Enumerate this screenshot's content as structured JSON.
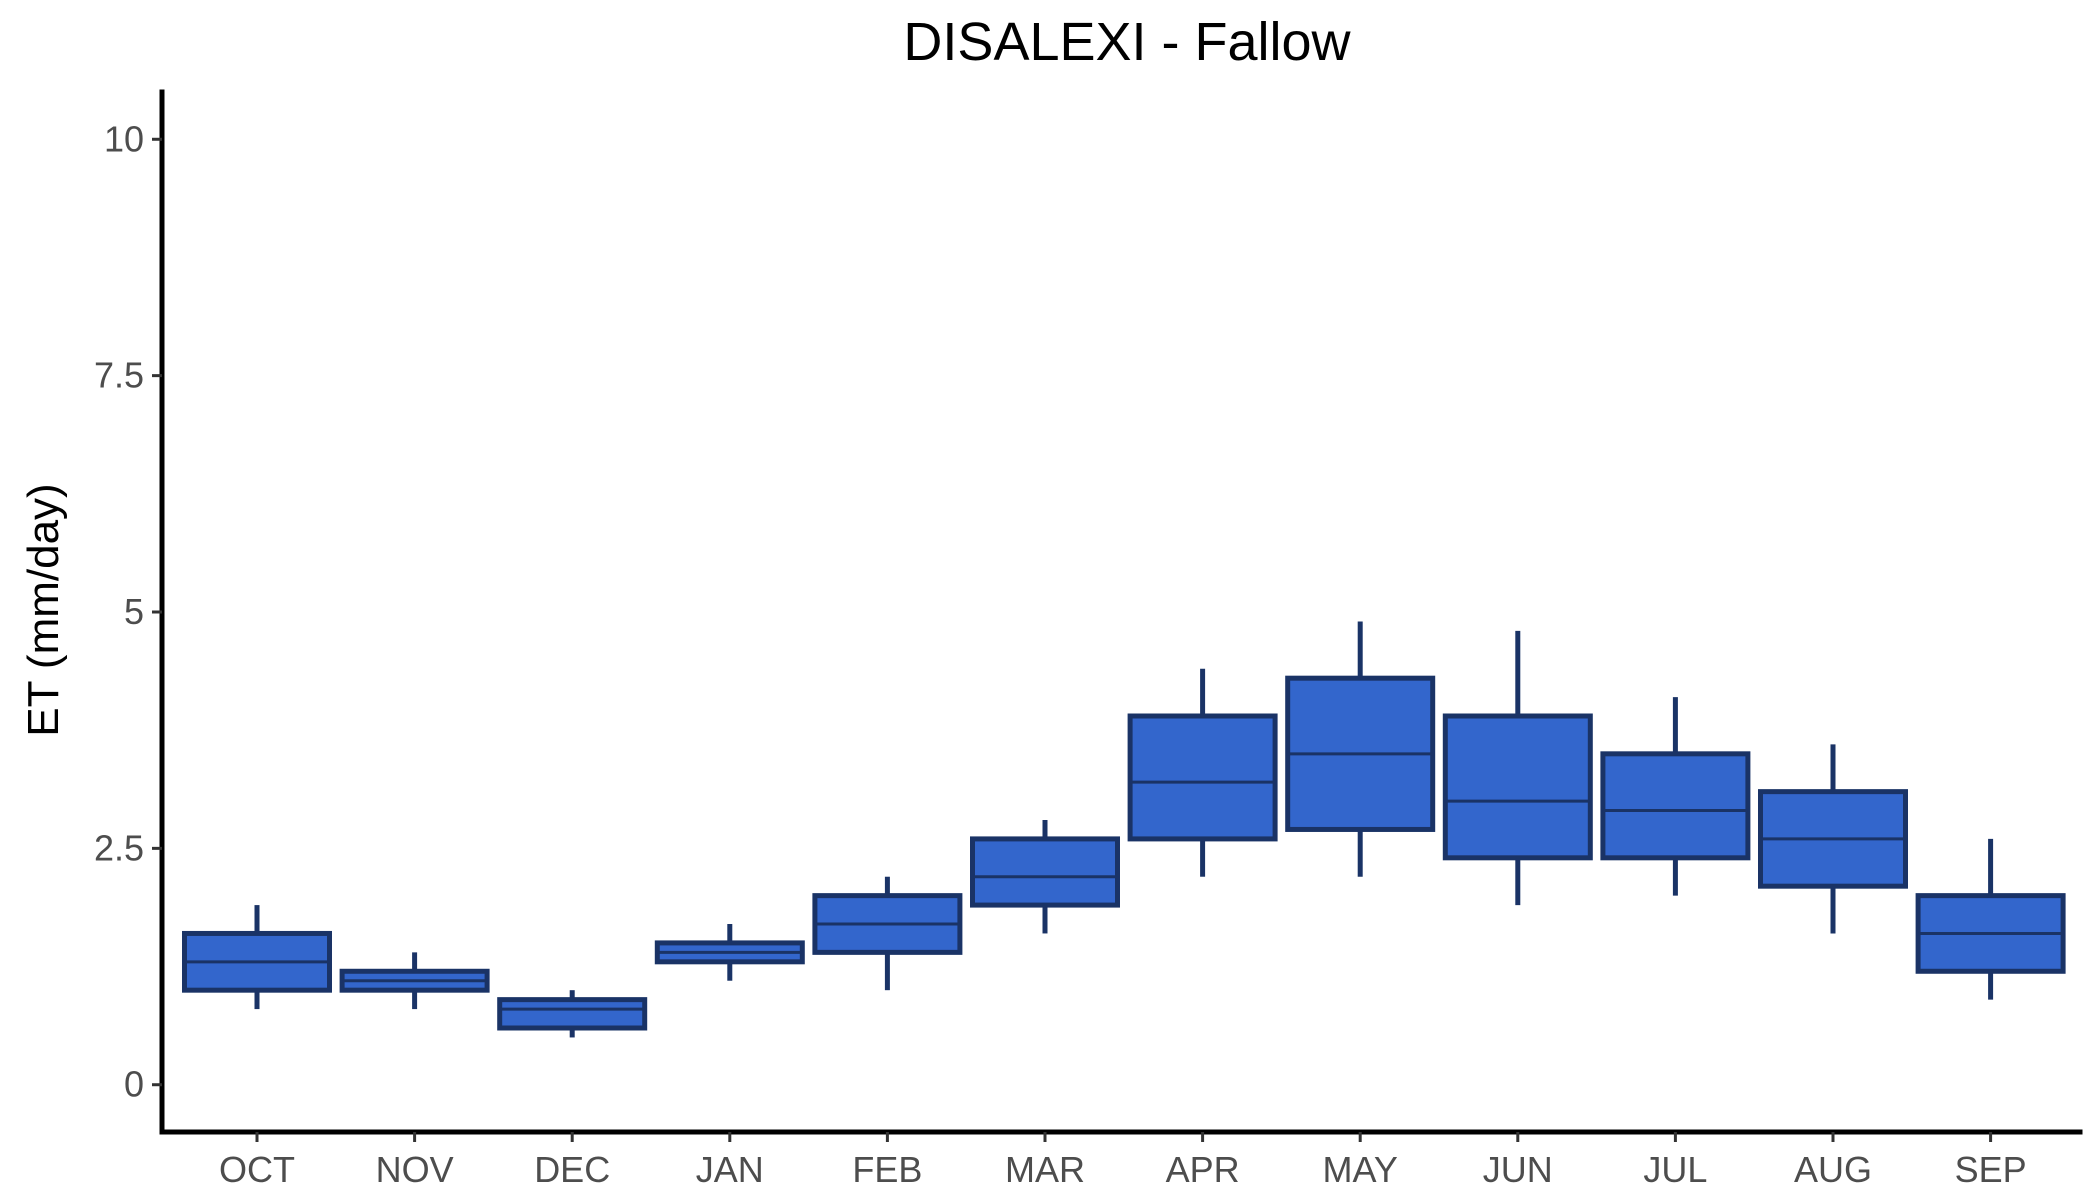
{
  "chart_data": {
    "type": "box",
    "title": "DISALEXI - Fallow",
    "xlabel": "",
    "ylabel": "ET (mm/day)",
    "ylim": [
      -0.5,
      10.5
    ],
    "yticks": [
      0,
      2.5,
      5,
      7.5,
      10
    ],
    "ytick_labels": [
      "0",
      "2.5",
      "5",
      "7.5",
      "10"
    ],
    "categories": [
      "OCT",
      "NOV",
      "DEC",
      "JAN",
      "FEB",
      "MAR",
      "APR",
      "MAY",
      "JUN",
      "JUL",
      "AUG",
      "SEP"
    ],
    "boxes": [
      {
        "min": 0.8,
        "q1": 1.0,
        "median": 1.3,
        "q3": 1.6,
        "max": 1.9
      },
      {
        "min": 0.8,
        "q1": 1.0,
        "median": 1.1,
        "q3": 1.2,
        "max": 1.4
      },
      {
        "min": 0.5,
        "q1": 0.6,
        "median": 0.8,
        "q3": 0.9,
        "max": 1.0
      },
      {
        "min": 1.1,
        "q1": 1.3,
        "median": 1.4,
        "q3": 1.5,
        "max": 1.7
      },
      {
        "min": 1.0,
        "q1": 1.4,
        "median": 1.7,
        "q3": 2.0,
        "max": 2.2
      },
      {
        "min": 1.6,
        "q1": 1.9,
        "median": 2.2,
        "q3": 2.6,
        "max": 2.8
      },
      {
        "min": 2.2,
        "q1": 2.6,
        "median": 3.2,
        "q3": 3.9,
        "max": 4.4
      },
      {
        "min": 2.2,
        "q1": 2.7,
        "median": 3.5,
        "q3": 4.3,
        "max": 4.9
      },
      {
        "min": 1.9,
        "q1": 2.4,
        "median": 3.0,
        "q3": 3.9,
        "max": 4.8
      },
      {
        "min": 2.0,
        "q1": 2.4,
        "median": 2.9,
        "q3": 3.5,
        "max": 4.1
      },
      {
        "min": 1.6,
        "q1": 2.1,
        "median": 2.6,
        "q3": 3.1,
        "max": 3.6
      },
      {
        "min": 0.9,
        "q1": 1.2,
        "median": 1.6,
        "q3": 2.0,
        "max": 2.6
      }
    ],
    "fill_color": "#3366cc",
    "line_color": "#1a3366",
    "grid": false,
    "legend": "none"
  }
}
